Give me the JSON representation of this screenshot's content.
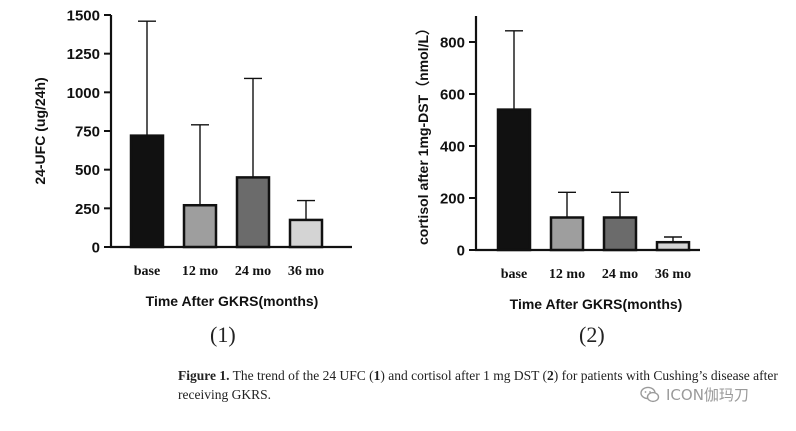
{
  "chart_data": [
    {
      "type": "bar",
      "title": "",
      "ylabel": "24-UFC (ug/24h)",
      "xlabel": "Time After GKRS(months)",
      "categories": [
        "base",
        "12 mo",
        "24 mo",
        "36 mo"
      ],
      "values": [
        720,
        270,
        450,
        175
      ],
      "error_upper": [
        1460,
        790,
        1090,
        300
      ],
      "bar_colors": [
        "#111111",
        "#9e9e9e",
        "#6b6b6b",
        "#d4d4d4"
      ],
      "ylim": [
        0,
        1500
      ],
      "yticks": [
        "0",
        "250",
        "500",
        "750",
        "1000",
        "1250",
        "1500"
      ],
      "ytick_values": [
        0,
        250,
        500,
        750,
        1000,
        1250,
        1500
      ]
    },
    {
      "type": "bar",
      "title": "",
      "ylabel": "cortisol after 1mg-DST（nmol/L）",
      "xlabel": "Time After GKRS(months)",
      "categories": [
        "base",
        "12 mo",
        "24 mo",
        "36 mo"
      ],
      "values": [
        540,
        125,
        125,
        30
      ],
      "error_upper": [
        843,
        222,
        222,
        50
      ],
      "bar_colors": [
        "#111111",
        "#9e9e9e",
        "#6b6b6b",
        "#d4d4d4"
      ],
      "ylim": [
        0,
        900
      ],
      "yticks": [
        "0",
        "200",
        "400",
        "600",
        "800"
      ],
      "ytick_values": [
        0,
        200,
        400,
        600,
        800
      ]
    }
  ],
  "panel_labels": [
    "(1)",
    "(2)"
  ],
  "caption": {
    "label": "Figure 1.",
    "text_parts": [
      " The trend of the 24 UFC (",
      "1",
      ") and cortisol after 1 mg DST (",
      "2",
      ") for patients with Cushing’s disease after receiving GKRS."
    ]
  },
  "watermark": {
    "text": "ICON伽玛刀",
    "icon": "wechat-icon"
  }
}
